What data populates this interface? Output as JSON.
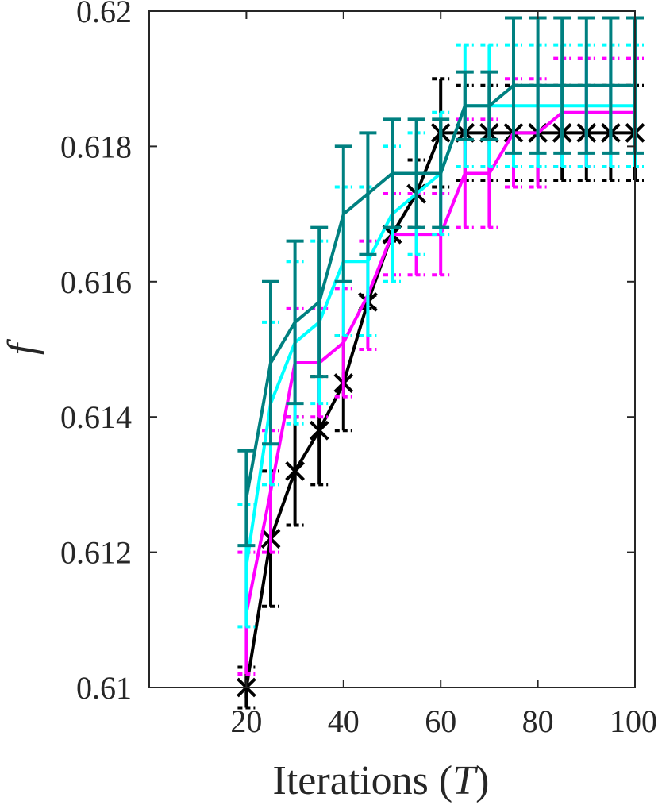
{
  "chart_data": {
    "type": "line",
    "title": "",
    "xlabel": "Iterations (T)",
    "xlabel_parts": {
      "prefix": "Iterations (",
      "var": "T",
      "suffix": ")"
    },
    "ylabel": "f",
    "xlim": [
      0,
      100
    ],
    "ylim": [
      0.61,
      0.62
    ],
    "xticks": [
      20,
      40,
      60,
      80,
      100
    ],
    "xtick_labels": [
      "20",
      "40",
      "60",
      "80",
      "100"
    ],
    "yticks": [
      0.61,
      0.612,
      0.614,
      0.616,
      0.618,
      0.62
    ],
    "ytick_labels": [
      "0.61",
      "0.612",
      "0.614",
      "0.616",
      "0.618",
      "0.62"
    ],
    "grid": false,
    "x": [
      20,
      25,
      30,
      35,
      40,
      45,
      50,
      55,
      60,
      65,
      70,
      75,
      80,
      85,
      90,
      95,
      100
    ],
    "series": [
      {
        "color": "#000000",
        "marker": "asterisk",
        "capstyle": "dashed",
        "values": [
          0.61,
          0.6122,
          0.6132,
          0.6138,
          0.6145,
          0.6157,
          0.6167,
          0.6173,
          0.6182,
          0.6182,
          0.6182,
          0.6182,
          0.6182,
          0.6182,
          0.6182,
          0.6182,
          0.6182
        ],
        "err": [
          0.0003,
          0.001,
          0.0008,
          0.0008,
          0.0007,
          0.0001,
          0.0001,
          0.0005,
          0.0008,
          0.0007,
          0.0007,
          0.0007,
          0.0007,
          0.0007,
          0.0007,
          0.0007,
          0.0007
        ]
      },
      {
        "color": "#ff00ff",
        "marker": "none",
        "capstyle": "dashed",
        "values": [
          0.6111,
          0.6129,
          0.6148,
          0.6148,
          0.6151,
          0.6158,
          0.6167,
          0.6167,
          0.6167,
          0.6176,
          0.6176,
          0.6182,
          0.6182,
          0.6185,
          0.6185,
          0.6185,
          0.6185
        ],
        "err": [
          0.0009,
          0.0009,
          0.0008,
          0.0008,
          0.0008,
          0.0008,
          0.0006,
          0.0006,
          0.0006,
          0.0008,
          0.0008,
          0.0008,
          0.0008,
          0.0008,
          0.0008,
          0.0008,
          0.0008
        ]
      },
      {
        "color": "#00ffff",
        "marker": "none",
        "capstyle": "dashed",
        "values": [
          0.6118,
          0.6142,
          0.6151,
          0.6154,
          0.6163,
          0.6163,
          0.617,
          0.6173,
          0.6176,
          0.6186,
          0.6186,
          0.6186,
          0.6186,
          0.6186,
          0.6186,
          0.6186,
          0.6186
        ],
        "err": [
          0.0009,
          0.0012,
          0.0012,
          0.0012,
          0.0011,
          0.0011,
          0.001,
          0.0009,
          0.0009,
          0.0009,
          0.0009,
          0.0009,
          0.0009,
          0.0009,
          0.0009,
          0.0009,
          0.0009
        ]
      },
      {
        "color": "#008080",
        "marker": "none",
        "capstyle": "solid",
        "values": [
          0.6128,
          0.6148,
          0.6154,
          0.6157,
          0.617,
          0.6173,
          0.6176,
          0.6176,
          0.6176,
          0.6186,
          0.6186,
          0.6189,
          0.6189,
          0.6189,
          0.6189,
          0.6189,
          0.6189
        ],
        "err": [
          0.0007,
          0.0012,
          0.0012,
          0.0011,
          0.001,
          0.0009,
          0.0008,
          0.0008,
          0.0008,
          0.0005,
          0.0005,
          0.001,
          0.001,
          0.001,
          0.001,
          0.001,
          0.001
        ]
      }
    ]
  }
}
